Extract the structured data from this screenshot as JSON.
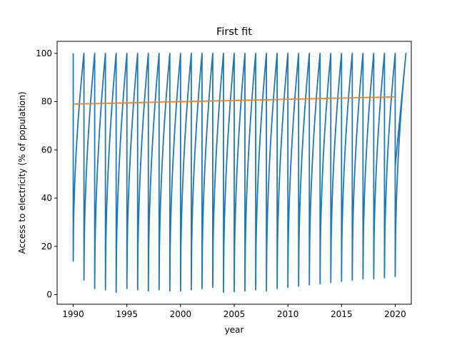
{
  "chart_data": {
    "type": "line",
    "title": "First fit",
    "xlabel": "year",
    "ylabel": "Access to electricity (% of population)",
    "xlim": [
      1988.5,
      2021.5
    ],
    "ylim": [
      -4,
      105
    ],
    "x_ticks": [
      1990,
      1995,
      2000,
      2005,
      2010,
      2015,
      2020
    ],
    "y_ticks": [
      0,
      20,
      40,
      60,
      80,
      100
    ],
    "grid": false,
    "legend": "none",
    "colors": {
      "data": "#1f77b4",
      "fit": "#ff7f0e"
    },
    "series": [
      {
        "x_start": 1990,
        "x_end": 2020,
        "year_minimums": [
          14,
          6,
          2.5,
          2,
          1,
          2.5,
          2,
          1.5,
          2,
          1.5,
          1.5,
          2,
          2.5,
          3,
          1,
          1.2,
          1.5,
          2,
          1.5,
          2.5,
          3,
          3.5,
          4,
          4.5,
          5,
          5.5,
          6,
          6.5,
          6.5,
          7,
          7.5
        ],
        "end_point": 53
      },
      {
        "x": [
          1990,
          2020
        ],
        "y": [
          79,
          82
        ]
      }
    ]
  }
}
